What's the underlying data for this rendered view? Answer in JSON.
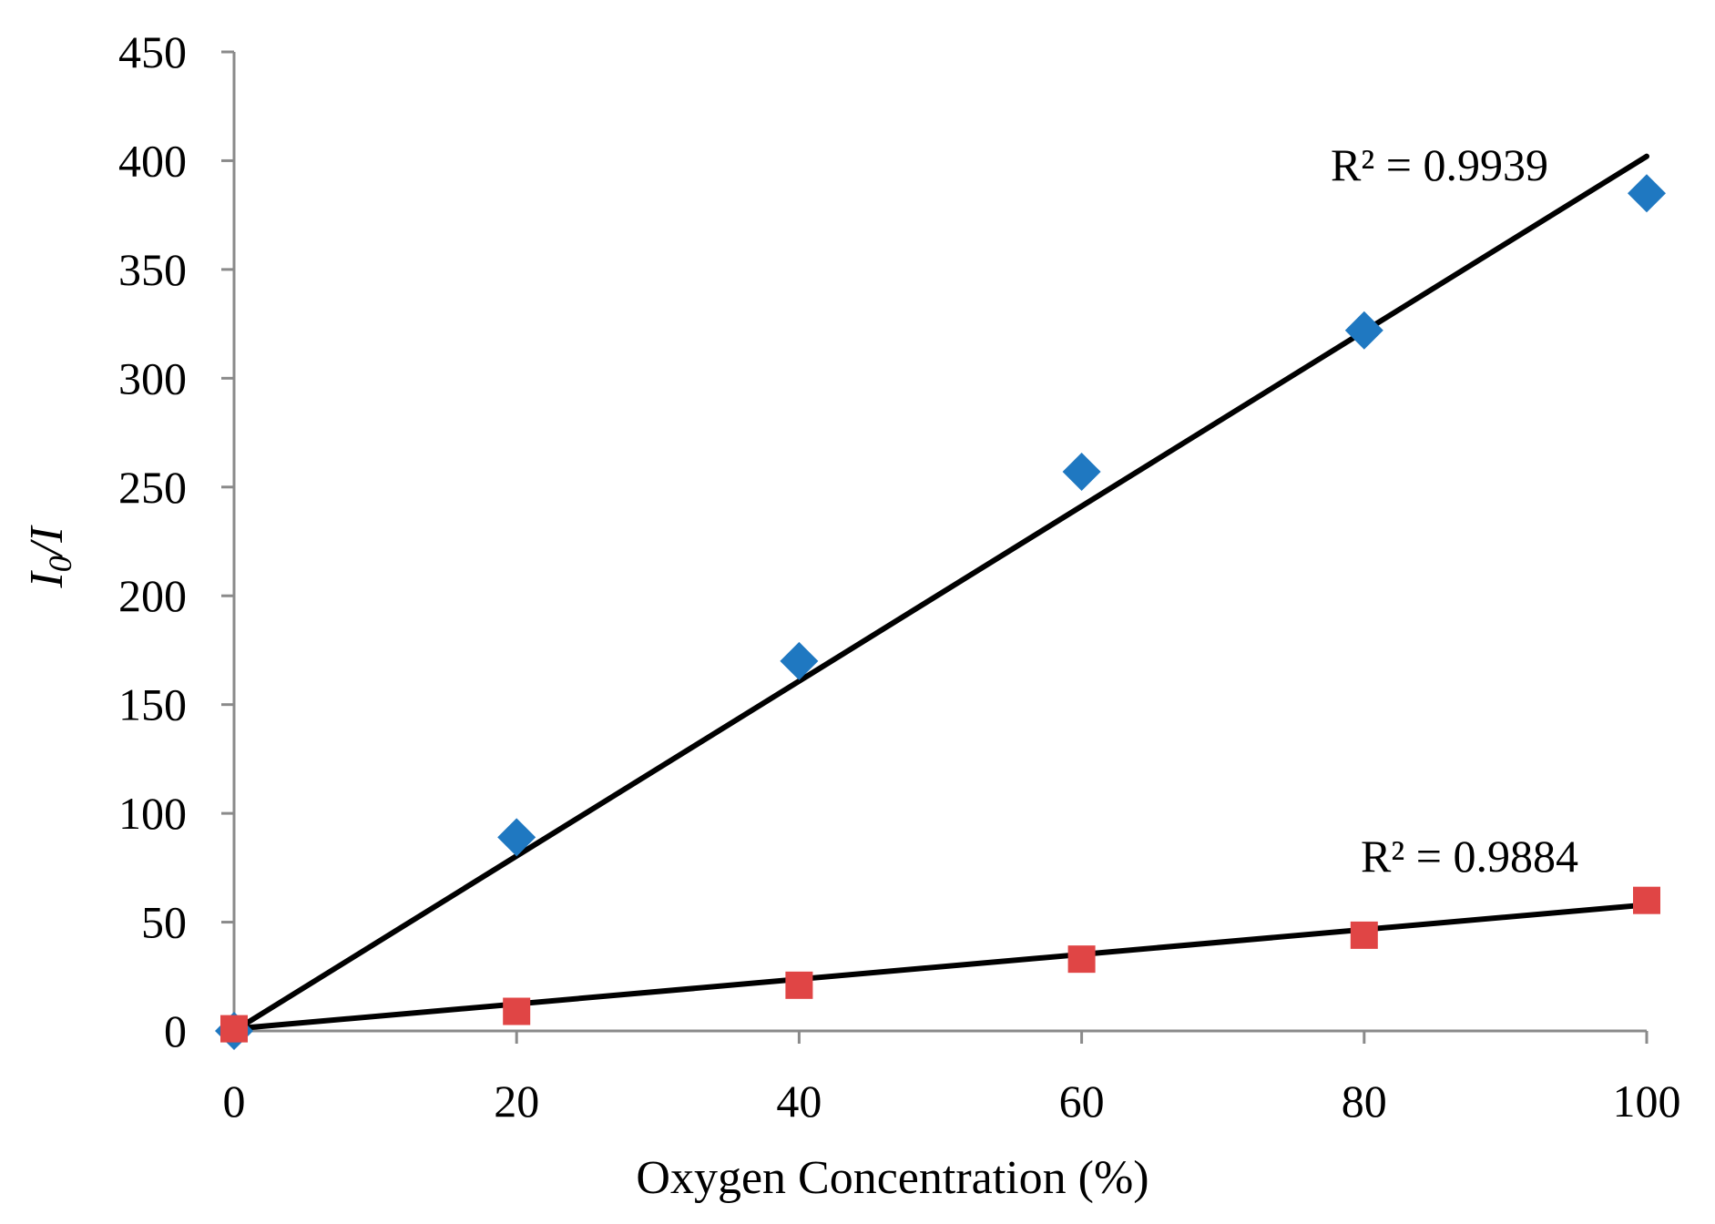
{
  "chart_data": {
    "type": "scatter",
    "title": "",
    "xlabel": "Oxygen Concentration (%)",
    "ylabel": {
      "main": "I",
      "sub": "0",
      "suffix": "/I"
    },
    "xlim": [
      0,
      100
    ],
    "ylim": [
      0,
      450
    ],
    "xticks": [
      0,
      20,
      40,
      60,
      80,
      100
    ],
    "yticks": [
      0,
      50,
      100,
      150,
      200,
      250,
      300,
      350,
      400,
      450
    ],
    "grid": false,
    "legend": "none",
    "series": [
      {
        "name": "series-1",
        "marker": "diamond",
        "color": "#1f78c1",
        "x": [
          0,
          20,
          40,
          60,
          80,
          100
        ],
        "y": [
          0,
          89,
          170,
          257,
          322,
          385
        ],
        "trendline": {
          "type": "linear",
          "intercept": 0,
          "slope": 4.02,
          "r2_label": "R² = 0.9939"
        }
      },
      {
        "name": "series-2",
        "marker": "square",
        "color": "#e04545",
        "x": [
          0,
          20,
          40,
          60,
          80,
          100
        ],
        "y": [
          1,
          9,
          21,
          33,
          44,
          60
        ],
        "trendline": {
          "type": "linear",
          "intercept": 1,
          "slope": 0.57,
          "r2_label": "R² = 0.9884"
        }
      }
    ]
  }
}
